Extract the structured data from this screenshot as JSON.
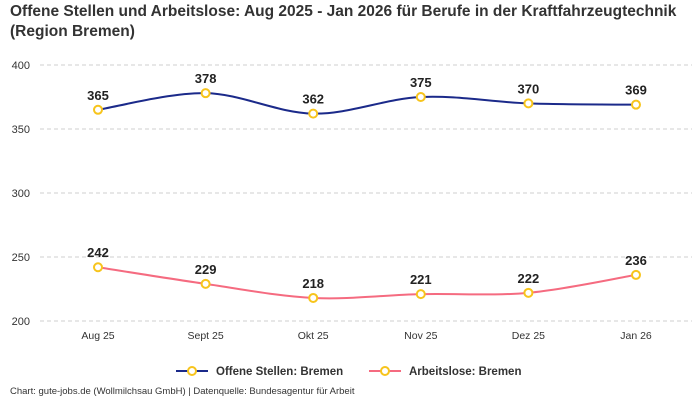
{
  "chart_data": {
    "type": "line",
    "title": "Offene Stellen und Arbeitslose: Aug 2025 - Jan 2026 für Berufe in der Kraftfahrzeugtechnik (Region Bremen)",
    "categories": [
      "Aug 25",
      "Sept 25",
      "Okt 25",
      "Nov 25",
      "Dez 25",
      "Jan 26"
    ],
    "ylim": [
      200,
      400
    ],
    "yticks": [
      200,
      250,
      300,
      350,
      400
    ],
    "grid": true,
    "legend_position": "bottom",
    "series": [
      {
        "name": "Offene Stellen: Bremen",
        "values": [
          365,
          378,
          362,
          375,
          370,
          369
        ],
        "color": "#1b2a8a"
      },
      {
        "name": "Arbeitslose: Bremen",
        "values": [
          242,
          229,
          218,
          221,
          222,
          236
        ],
        "color": "#f56b80"
      }
    ],
    "marker_color": "#f7c41c"
  },
  "footer": "Chart: gute-jobs.de (Wollmilchsau GmbH) | Datenquelle: Bundesagentur für Arbeit"
}
